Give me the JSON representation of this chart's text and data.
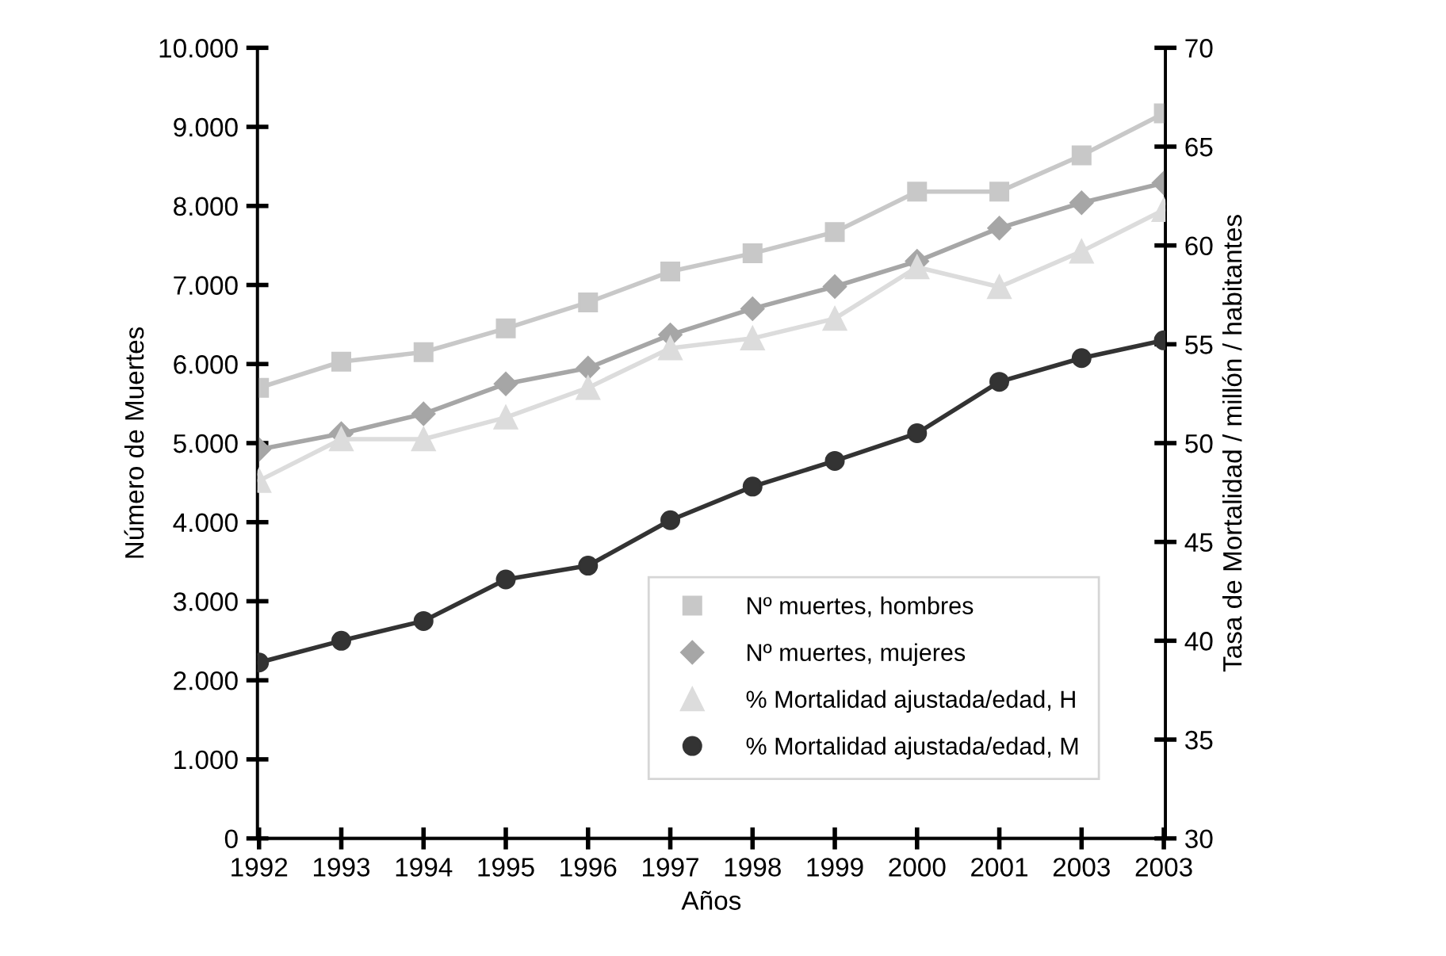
{
  "chart_data": {
    "type": "line",
    "xlabel": "Años",
    "ylabel": "Número de Muertes",
    "y2label": "Tasa de Mortalidad / millón / habitantes",
    "categories": [
      "1992",
      "1993",
      "1994",
      "1995",
      "1996",
      "1997",
      "1998",
      "1999",
      "2000",
      "2001",
      "2003",
      "2003"
    ],
    "series": [
      {
        "name": "Nº muertes, hombres",
        "color": "#c8c8c8",
        "marker": "square",
        "values": [
          5700,
          6030,
          6150,
          6450,
          6780,
          7170,
          7400,
          7670,
          8180,
          8180,
          8640,
          9170
        ]
      },
      {
        "name": "Nº muertes, mujeres",
        "color": "#a6a6a6",
        "marker": "diamond",
        "values": [
          4920,
          5120,
          5370,
          5750,
          5950,
          6370,
          6700,
          6980,
          7300,
          7720,
          8040,
          8290
        ]
      },
      {
        "name": "% Mortalidad ajustada/edad, H",
        "color": "#dcdcdc",
        "marker": "triangle",
        "axis": "y2",
        "values": [
          48.1,
          50.2,
          50.2,
          51.3,
          52.8,
          54.8,
          55.3,
          56.3,
          58.9,
          57.9,
          59.7,
          61.8
        ]
      },
      {
        "name": "% Mortalidad ajustada/edad, M",
        "color": "#333333",
        "marker": "circle",
        "axis": "y2",
        "values": [
          38.9,
          40.0,
          41.0,
          43.1,
          43.8,
          46.1,
          47.8,
          49.1,
          50.5,
          53.1,
          54.3,
          55.2
        ]
      }
    ],
    "ylim": [
      0,
      10000
    ],
    "yticks": [
      0,
      {
        "value": 1000,
        "label": "1.000"
      },
      {
        "value": 2000,
        "label": "2.000"
      },
      {
        "value": 3000,
        "label": "3.000"
      },
      {
        "value": 4000,
        "label": "4.000"
      },
      {
        "value": 5000,
        "label": "5.000"
      },
      {
        "value": 6000,
        "label": "6.000"
      },
      {
        "value": 7000,
        "label": "7.000"
      },
      {
        "value": 8000,
        "label": "8.000"
      },
      {
        "value": 9000,
        "label": "9.000"
      },
      {
        "value": 10000,
        "label": "10.000"
      }
    ],
    "y2lim": [
      30,
      70
    ],
    "y2ticks": [
      30,
      35,
      40,
      45,
      50,
      55,
      60,
      65,
      70
    ],
    "grid": false,
    "legend": "bottom right"
  }
}
